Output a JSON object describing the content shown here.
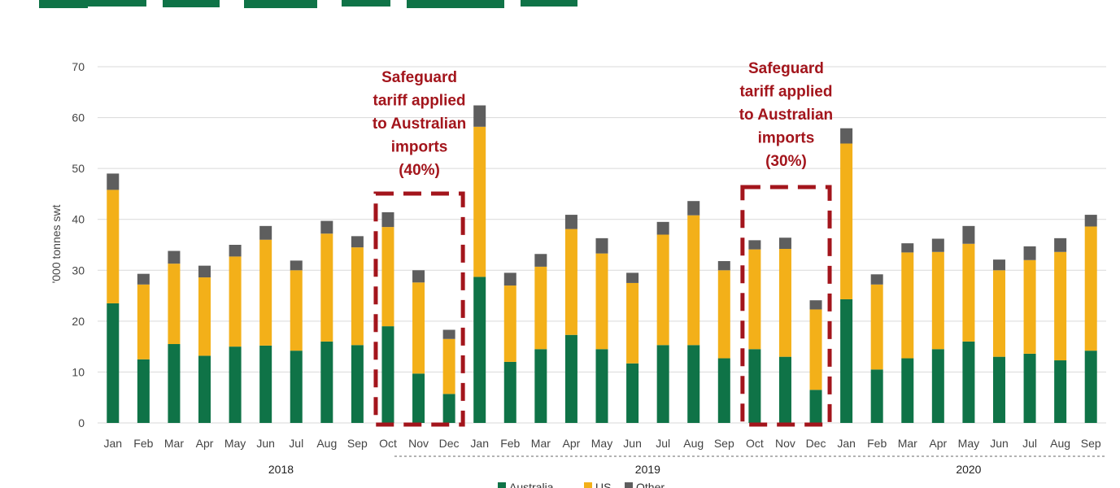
{
  "chart_data": {
    "type": "bar",
    "stacked": true,
    "ylabel": "'000 tonnes swt",
    "ylim": [
      0,
      70
    ],
    "yticks": [
      0,
      10,
      20,
      30,
      40,
      50,
      60,
      70
    ],
    "grid": true,
    "legend_position": "bottom",
    "categories": [
      "Jan",
      "Feb",
      "Mar",
      "Apr",
      "May",
      "Jun",
      "Jul",
      "Aug",
      "Sep",
      "Oct",
      "Nov",
      "Dec",
      "Jan",
      "Feb",
      "Mar",
      "Apr",
      "May",
      "Jun",
      "Jul",
      "Aug",
      "Sep",
      "Oct",
      "Nov",
      "Dec",
      "Jan",
      "Feb",
      "Mar",
      "Apr",
      "May",
      "Jun",
      "Jul",
      "Aug",
      "Sep"
    ],
    "years": [
      {
        "label": "2018",
        "start": 0,
        "end": 11
      },
      {
        "label": "2019",
        "start": 12,
        "end": 23
      },
      {
        "label": "2020",
        "start": 24,
        "end": 32
      }
    ],
    "series": [
      {
        "name": "Australia",
        "color": "#0f7347",
        "values": [
          23.5,
          12.5,
          15.5,
          13.2,
          15,
          15.2,
          14.2,
          16,
          15.3,
          19,
          9.7,
          5.7,
          28.7,
          12,
          14.5,
          17.3,
          14.5,
          11.7,
          15.3,
          15.3,
          12.7,
          14.5,
          13,
          6.5,
          24.3,
          10.5,
          12.7,
          14.5,
          16,
          13,
          13.6,
          12.3,
          14.2
        ]
      },
      {
        "name": "US",
        "color": "#f3b019",
        "values": [
          22.3,
          14.7,
          15.8,
          15.4,
          17.7,
          20.8,
          15.8,
          21.2,
          19.2,
          19.5,
          17.9,
          10.8,
          29.5,
          15,
          16.2,
          20.8,
          18.8,
          15.8,
          21.7,
          25.5,
          17.3,
          19.6,
          21.2,
          15.8,
          30.6,
          16.7,
          20.8,
          19.1,
          19.2,
          17,
          18.4,
          21.3,
          24.4
        ]
      },
      {
        "name": "Other",
        "color": "#5e5e5e",
        "values": [
          3.2,
          2.1,
          2.5,
          2.3,
          2.3,
          2.7,
          1.9,
          2.5,
          2.2,
          2.9,
          2.4,
          1.8,
          4.2,
          2.5,
          2.5,
          2.8,
          3.0,
          2.0,
          2.5,
          2.8,
          1.8,
          1.8,
          2.2,
          1.8,
          3.0,
          2.0,
          1.8,
          2.6,
          3.5,
          2.1,
          2.7,
          2.7,
          2.3
        ]
      }
    ],
    "annotations": [
      {
        "lines": [
          "Safeguard",
          "tariff applied",
          "to Australian",
          "imports",
          "(40%)"
        ],
        "box_categories": [
          9,
          11
        ]
      },
      {
        "lines": [
          "Safeguard",
          "tariff applied",
          "to Australian",
          "imports",
          "(30%)"
        ],
        "box_categories": [
          21,
          23
        ]
      }
    ]
  },
  "colors": {
    "grid": "#d9d9d9",
    "annotation": "#a3151c",
    "title": "#0f7347"
  }
}
